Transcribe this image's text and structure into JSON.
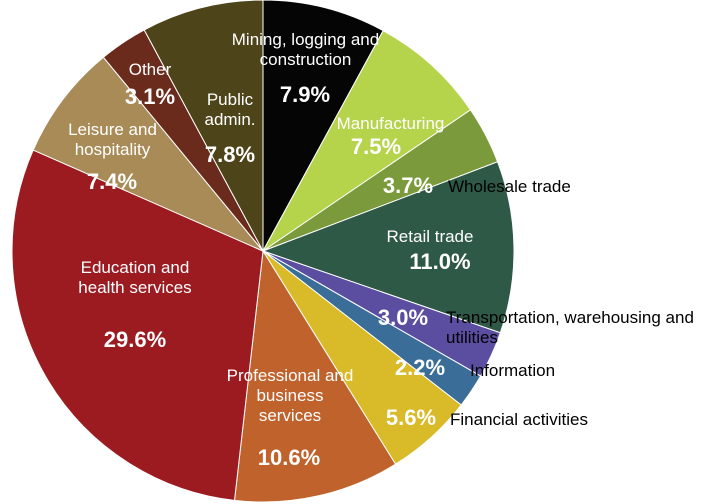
{
  "chart_data": {
    "type": "pie",
    "categories": [
      "Mining, logging and construction",
      "Manufacturing",
      "Wholesale trade",
      "Retail trade",
      "Transportation, warehousing and utilities",
      "Information",
      "Financial activities",
      "Professional and business services",
      "Education and health services",
      "Leisure and hospitality",
      "Other",
      "Public admin."
    ],
    "values": [
      7.9,
      7.5,
      3.7,
      11.0,
      3.0,
      2.2,
      5.6,
      10.6,
      29.6,
      7.4,
      3.1,
      7.8
    ],
    "value_labels": [
      "7.9%",
      "7.5%",
      "3.7%",
      "11.0%",
      "3.0%",
      "2.2%",
      "5.6%",
      "10.6%",
      "29.6%",
      "7.4%",
      "3.1%",
      "7.8%"
    ],
    "colors": [
      "#050505",
      "#b6d44b",
      "#7b9a3b",
      "#2f5947",
      "#5b4ea0",
      "#3a6e98",
      "#d9ba29",
      "#c0622b",
      "#9b1b21",
      "#a88b57",
      "#6a2a1c",
      "#4e4419"
    ]
  }
}
